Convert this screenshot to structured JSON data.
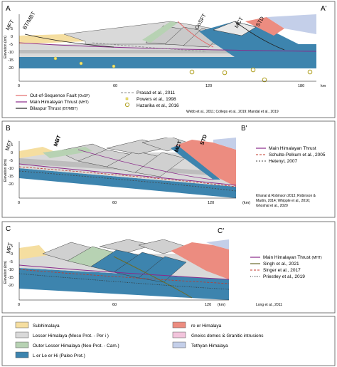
{
  "panels": [
    {
      "id": "A",
      "letter": "A",
      "letter_prime": "A'",
      "fault_labels": [
        "MFT",
        "BT/MBT",
        "OoSFT",
        "MCT",
        "STD"
      ],
      "y_axis_title": "Elevation (km)",
      "y_ticks": [
        "5",
        "0",
        "-5",
        "-10",
        "-15",
        "-20"
      ],
      "x_ticks": [
        "0",
        "60",
        "120",
        "180"
      ],
      "x_unit": "km",
      "legend": [
        {
          "label": "Out-of-Sequence Fault",
          "small": "(OoSF)",
          "symbol": "line",
          "color": "#e36b6b"
        },
        {
          "label": "Main Himalayan Thrust",
          "small": "(MHT)",
          "symbol": "line",
          "color": "#8a2a8a"
        },
        {
          "label": "Bilaspur Thrust",
          "small": "(BT/MBT)",
          "symbol": "line",
          "color": "#222222"
        },
        {
          "label": "Prasad et al., 2011",
          "small": "",
          "symbol": "dash",
          "color": "#888888"
        },
        {
          "label": "Powers et al., 1998",
          "small": "",
          "symbol": "dot-yellow",
          "color": "#e6d75a"
        },
        {
          "label": "Hazarika et al., 2016",
          "small": "",
          "symbol": "circle-olive",
          "color": "#b0a020"
        }
      ],
      "reference": "Webb et al., 2011; Colleps et al., 2019; Mandal et al., 2019"
    },
    {
      "id": "B",
      "letter": "B",
      "letter_prime": "B'",
      "fault_labels": [
        "MFT",
        "MBT",
        "MCT",
        "STD"
      ],
      "y_axis_title": "Elevation (km)",
      "y_ticks": [
        "5",
        "0",
        "-5",
        "-10",
        "-15",
        "-20"
      ],
      "x_ticks": [
        "0",
        "60",
        "120"
      ],
      "x_unit": "(km)",
      "legend": [
        {
          "label": "Main Himalayan Thrust",
          "small": "",
          "symbol": "line",
          "color": "#8a2a8a"
        },
        {
          "label": "Schulte-Pelkum et al., 2005",
          "small": "",
          "symbol": "dash",
          "color": "#c0392b"
        },
        {
          "label": "Hetenyi, 2007",
          "small": "",
          "symbol": "dash",
          "color": "#444444"
        }
      ],
      "reference_lines": [
        "Khanal & Robinson 2013; Robinson &",
        "Martin, 2014; Whipple et al., 2016;",
        "Ghoshal et al., 2020"
      ]
    },
    {
      "id": "C",
      "letter": "C",
      "letter_prime": "C'",
      "fault_labels": [
        "MFT"
      ],
      "y_axis_title": "Elevation (km)",
      "y_ticks": [
        "5",
        "0",
        "-5",
        "-10",
        "-15",
        "-20"
      ],
      "x_ticks": [
        "0",
        "60",
        "120"
      ],
      "x_unit": "(km)",
      "legend": [
        {
          "label": "Main Himalayan Thrust",
          "small": "(MHT)",
          "symbol": "line",
          "color": "#8a2a8a"
        },
        {
          "label": "Singh et al., 2021",
          "small": "",
          "symbol": "line",
          "color": "#6b6b2a"
        },
        {
          "label": "Singer et al., 2017",
          "small": "",
          "symbol": "dash",
          "color": "#c0392b"
        },
        {
          "label": "Priestley et al., 2019",
          "small": "",
          "symbol": "dot",
          "color": "#333333"
        }
      ],
      "reference": "Long et al., 2011"
    }
  ],
  "unit_legend": [
    {
      "label": "Subhimalaya",
      "color": "#f5dea0"
    },
    {
      "label": "re   er Himalaya",
      "color": "#ec8c80"
    },
    {
      "label": "Lesser Himalaya (Meso Prot. - Per   i     )",
      "color": "#d9d9d9"
    },
    {
      "label": "Gneiss domes & Granitic intrusions",
      "color": "#f2c4dc"
    },
    {
      "label": "Outer Lesser Himalaya (Neo-Prot. - Cam.)",
      "color": "#b7d2b3"
    },
    {
      "label": "Tethyan Himalaya",
      "color": "#c4cfe9"
    },
    {
      "label": "L     er Le    er Hi          (Paleo Prot.)",
      "color": "#3d84ae"
    }
  ]
}
